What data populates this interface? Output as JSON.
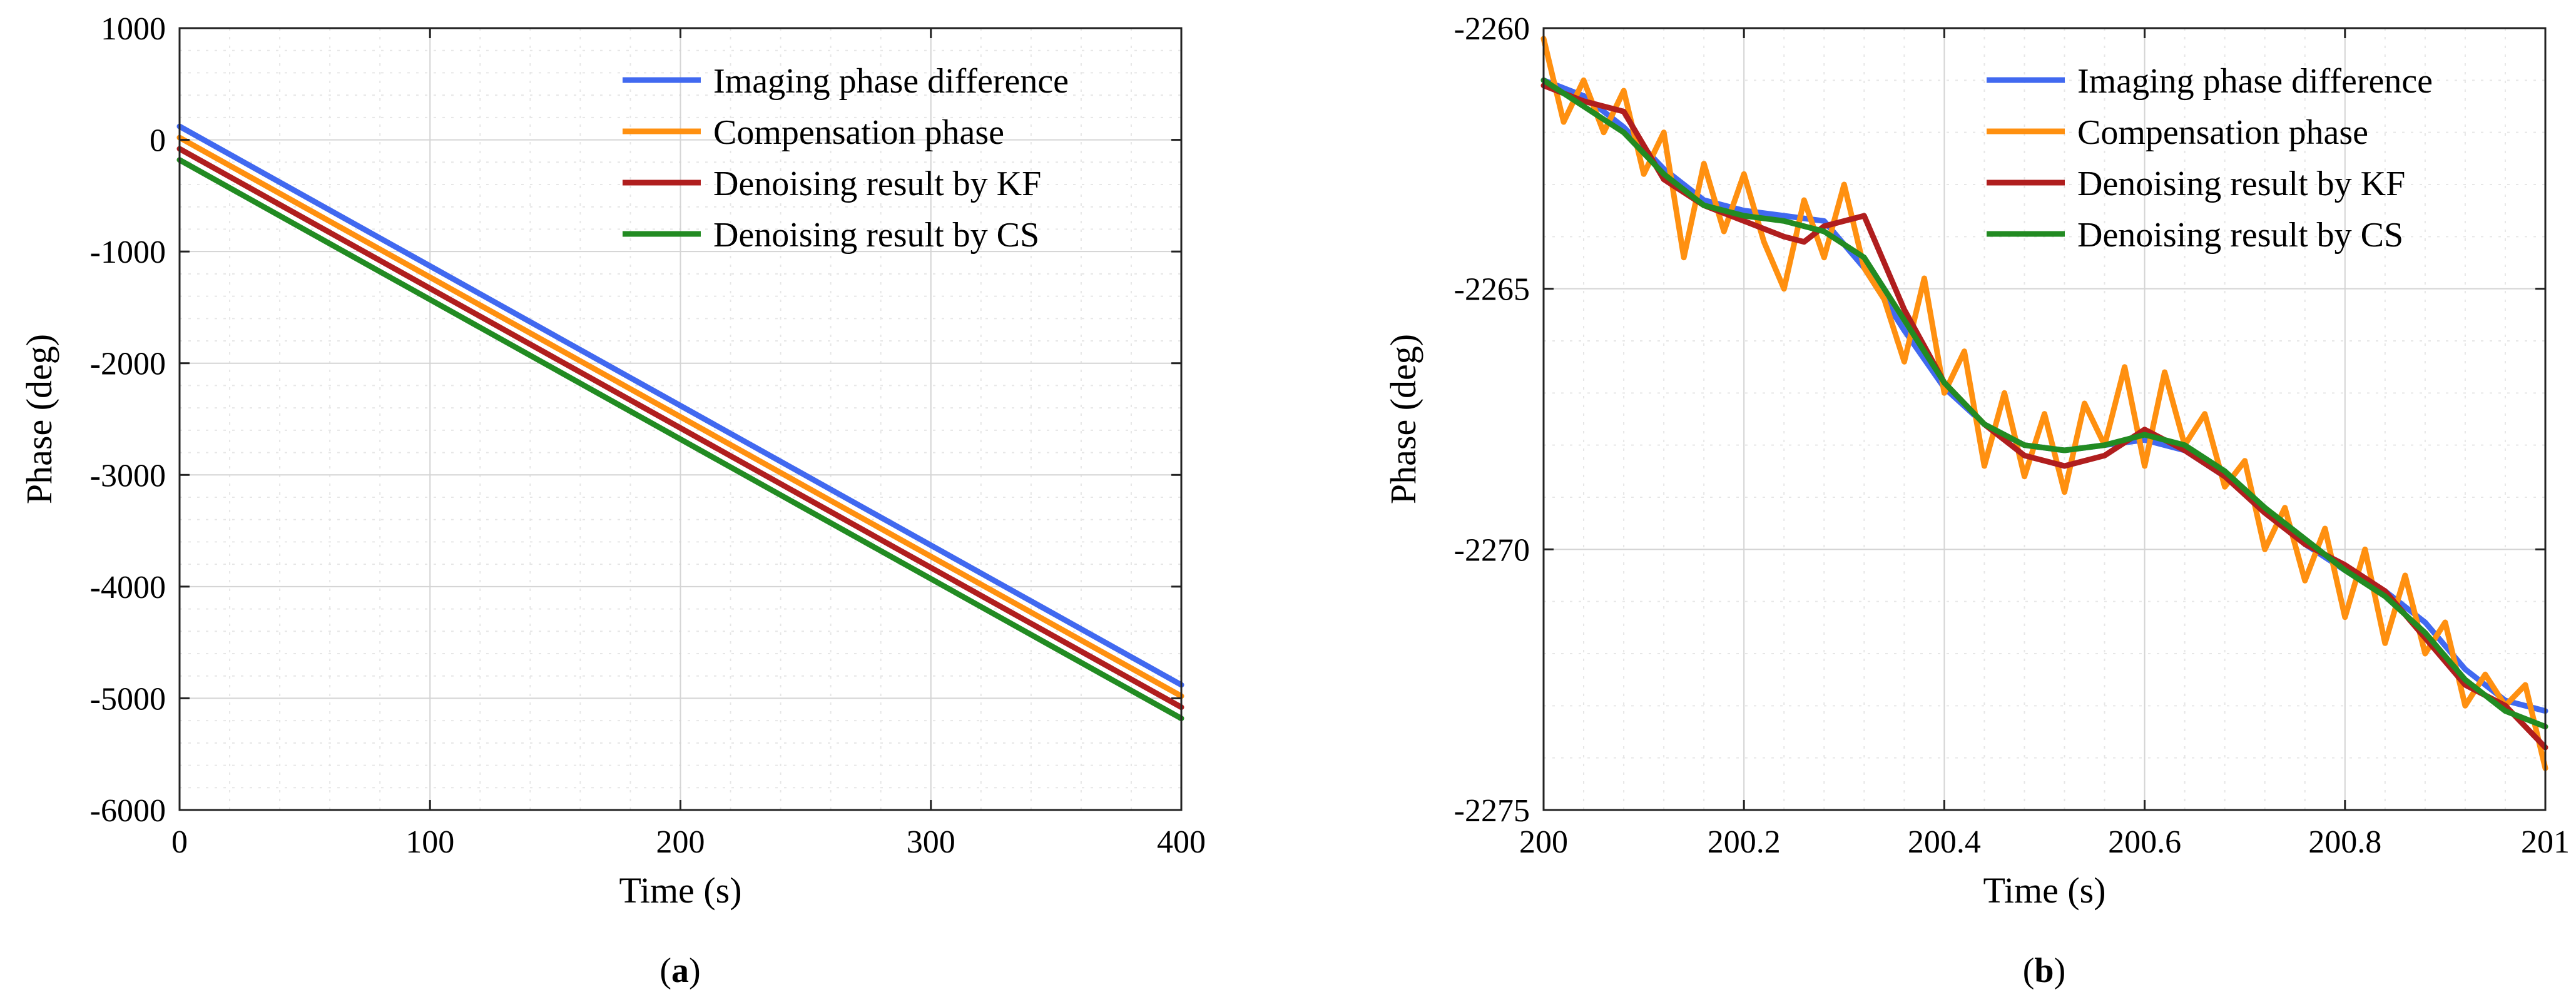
{
  "chart_data": [
    {
      "type": "line",
      "panel_label": "(a)",
      "xlabel": "Time (s)",
      "ylabel": "Phase (deg)",
      "xlim": [
        0,
        400
      ],
      "ylim": [
        -6000,
        1000
      ],
      "xticks": [
        0,
        100,
        200,
        300,
        400
      ],
      "yticks": [
        1000,
        0,
        -1000,
        -2000,
        -3000,
        -4000,
        -5000,
        -6000
      ],
      "grid": true,
      "legend_position": "top-right",
      "series": [
        {
          "name": "Imaging phase difference",
          "color": "#4169f0",
          "x": [
            0,
            400
          ],
          "y": [
            120,
            -4880
          ]
        },
        {
          "name": "Compensation phase",
          "color": "#ff9010",
          "x": [
            0,
            400
          ],
          "y": [
            20,
            -4980
          ]
        },
        {
          "name": "Denoising result by KF",
          "color": "#b01e1e",
          "x": [
            0,
            400
          ],
          "y": [
            -80,
            -5080
          ]
        },
        {
          "name": "Denoising result by CS",
          "color": "#228b22",
          "x": [
            0,
            400
          ],
          "y": [
            -180,
            -5180
          ]
        }
      ]
    },
    {
      "type": "line",
      "panel_label": "(b)",
      "xlabel": "Time (s)",
      "ylabel": "Phase (deg)",
      "xlim": [
        200,
        201
      ],
      "ylim": [
        -2275,
        -2260
      ],
      "xticks": [
        200,
        200.2,
        200.4,
        200.6,
        200.8,
        201
      ],
      "xtick_labels": [
        "200",
        "200.2",
        "200.4",
        "200.6",
        "200.8",
        "201"
      ],
      "yticks": [
        -2260,
        -2265,
        -2270,
        -2275
      ],
      "grid": true,
      "legend_position": "top-right",
      "series": [
        {
          "name": "Imaging phase difference",
          "color": "#4169f0",
          "x": [
            200,
            200.04,
            200.08,
            200.12,
            200.16,
            200.2,
            200.24,
            200.28,
            200.32,
            200.36,
            200.4,
            200.44,
            200.48,
            200.52,
            200.56,
            200.6,
            200.64,
            200.68,
            200.72,
            200.76,
            200.8,
            200.84,
            200.88,
            200.92,
            200.96,
            201
          ],
          "y": [
            -2261.0,
            -2261.3,
            -2261.9,
            -2262.7,
            -2263.3,
            -2263.5,
            -2263.6,
            -2263.7,
            -2264.6,
            -2265.8,
            -2266.9,
            -2267.6,
            -2268.0,
            -2268.1,
            -2268.0,
            -2267.9,
            -2268.1,
            -2268.6,
            -2269.2,
            -2269.9,
            -2270.4,
            -2270.8,
            -2271.4,
            -2272.3,
            -2272.9,
            -2273.1
          ]
        },
        {
          "name": "Compensation phase",
          "color": "#ff9010",
          "x": [
            200,
            200.02,
            200.04,
            200.06,
            200.08,
            200.1,
            200.12,
            200.14,
            200.16,
            200.18,
            200.2,
            200.22,
            200.24,
            200.26,
            200.28,
            200.3,
            200.32,
            200.34,
            200.36,
            200.38,
            200.4,
            200.42,
            200.44,
            200.46,
            200.48,
            200.5,
            200.52,
            200.54,
            200.56,
            200.58,
            200.6,
            200.62,
            200.64,
            200.66,
            200.68,
            200.7,
            200.72,
            200.74,
            200.76,
            200.78,
            200.8,
            200.82,
            200.84,
            200.86,
            200.88,
            200.9,
            200.92,
            200.94,
            200.96,
            200.98,
            201
          ],
          "y": [
            -2260.2,
            -2261.8,
            -2261.0,
            -2262.0,
            -2261.2,
            -2262.8,
            -2262.0,
            -2264.4,
            -2262.6,
            -2263.9,
            -2262.8,
            -2264.1,
            -2265.0,
            -2263.3,
            -2264.4,
            -2263.0,
            -2264.6,
            -2265.2,
            -2266.4,
            -2264.8,
            -2267.0,
            -2266.2,
            -2268.4,
            -2267.0,
            -2268.6,
            -2267.4,
            -2268.9,
            -2267.2,
            -2268.0,
            -2266.5,
            -2268.4,
            -2266.6,
            -2268.0,
            -2267.4,
            -2268.8,
            -2268.3,
            -2270.0,
            -2269.2,
            -2270.6,
            -2269.6,
            -2271.3,
            -2270.0,
            -2271.8,
            -2270.5,
            -2272.0,
            -2271.4,
            -2273.0,
            -2272.4,
            -2273.0,
            -2272.6,
            -2274.2
          ]
        },
        {
          "name": "Denoising result by KF",
          "color": "#b01e1e",
          "x": [
            200,
            200.04,
            200.08,
            200.12,
            200.16,
            200.2,
            200.24,
            200.26,
            200.28,
            200.3,
            200.32,
            200.36,
            200.4,
            200.44,
            200.48,
            200.52,
            200.56,
            200.6,
            200.64,
            200.68,
            200.72,
            200.76,
            200.8,
            200.84,
            200.88,
            200.92,
            200.96,
            201
          ],
          "y": [
            -2261.1,
            -2261.4,
            -2261.6,
            -2262.9,
            -2263.4,
            -2263.7,
            -2264.0,
            -2264.1,
            -2263.8,
            -2263.7,
            -2263.6,
            -2265.4,
            -2266.8,
            -2267.6,
            -2268.2,
            -2268.4,
            -2268.2,
            -2267.7,
            -2268.1,
            -2268.6,
            -2269.3,
            -2269.9,
            -2270.3,
            -2270.8,
            -2271.7,
            -2272.6,
            -2273.0,
            -2273.8
          ]
        },
        {
          "name": "Denoising result by CS",
          "color": "#228b22",
          "x": [
            200,
            200.04,
            200.08,
            200.12,
            200.16,
            200.2,
            200.24,
            200.28,
            200.32,
            200.36,
            200.4,
            200.44,
            200.48,
            200.52,
            200.56,
            200.6,
            200.64,
            200.68,
            200.72,
            200.76,
            200.8,
            200.84,
            200.88,
            200.92,
            200.96,
            201
          ],
          "y": [
            -2261.0,
            -2261.5,
            -2262.0,
            -2262.8,
            -2263.4,
            -2263.6,
            -2263.7,
            -2263.9,
            -2264.4,
            -2265.6,
            -2266.8,
            -2267.6,
            -2268.0,
            -2268.1,
            -2268.0,
            -2267.8,
            -2268.0,
            -2268.5,
            -2269.2,
            -2269.8,
            -2270.4,
            -2270.9,
            -2271.6,
            -2272.5,
            -2273.1,
            -2273.4
          ]
        }
      ]
    }
  ]
}
